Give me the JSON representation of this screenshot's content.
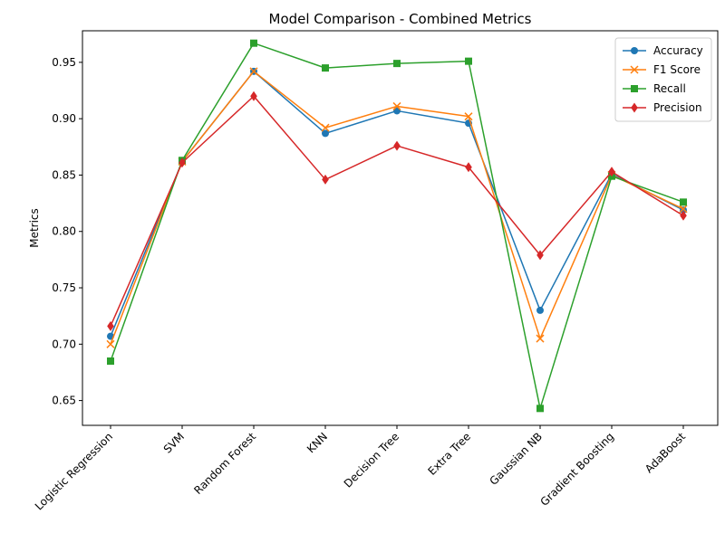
{
  "chart_data": {
    "type": "line",
    "title": "Model Comparison - Combined Metrics",
    "xlabel": "",
    "ylabel": "Metrics",
    "categories": [
      "Logistic Regression",
      "SVM",
      "Random Forest",
      "KNN",
      "Decision Tree",
      "Extra Tree",
      "Gaussian NB",
      "Gradient Boosting",
      "AdaBoost"
    ],
    "ylim": [
      0.628,
      0.978
    ],
    "yticks": [
      "0.65",
      "0.70",
      "0.75",
      "0.80",
      "0.85",
      "0.90",
      "0.95"
    ],
    "grid": false,
    "legend": "top-right",
    "series": [
      {
        "name": "Accuracy",
        "color": "#1f77b4",
        "marker": "circle",
        "values": [
          0.707,
          0.862,
          0.942,
          0.887,
          0.907,
          0.896,
          0.73,
          0.851,
          0.819
        ]
      },
      {
        "name": "F1 Score",
        "color": "#ff7f0e",
        "marker": "x",
        "values": [
          0.7,
          0.862,
          0.942,
          0.892,
          0.911,
          0.902,
          0.705,
          0.85,
          0.82
        ]
      },
      {
        "name": "Recall",
        "color": "#2ca02c",
        "marker": "square",
        "values": [
          0.685,
          0.863,
          0.967,
          0.945,
          0.949,
          0.951,
          0.643,
          0.849,
          0.826
        ]
      },
      {
        "name": "Precision",
        "color": "#d62728",
        "marker": "diamond",
        "values": [
          0.716,
          0.861,
          0.92,
          0.846,
          0.876,
          0.857,
          0.779,
          0.853,
          0.814
        ]
      }
    ]
  }
}
